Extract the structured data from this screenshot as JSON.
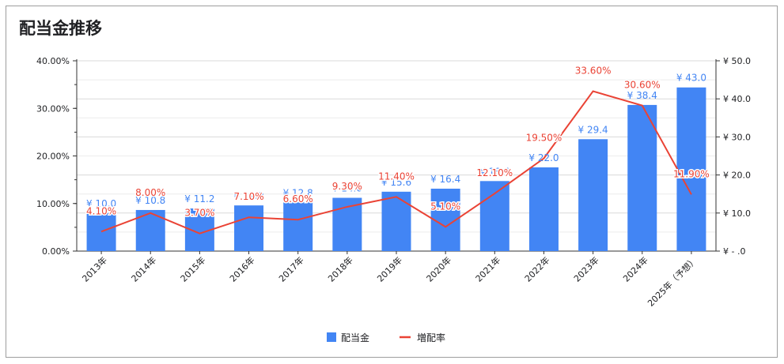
{
  "chart_data": {
    "type": "bar",
    "title": "配当金推移",
    "categories": [
      "2013年",
      "2014年",
      "2015年",
      "2016年",
      "2017年",
      "2018年",
      "2019年",
      "2020年",
      "2021年",
      "2022年",
      "2023年",
      "2024年",
      "2025年（予想）"
    ],
    "series": [
      {
        "name": "配当金",
        "type": "bar",
        "axis": "right",
        "color": "#4285f4",
        "values": [
          10.0,
          10.8,
          11.2,
          12.0,
          12.8,
          14.0,
          15.6,
          16.4,
          18.4,
          22.0,
          29.4,
          38.4,
          43.0
        ],
        "labels": [
          "¥ 10.0",
          "¥ 10.8",
          "¥ 11.2",
          "¥ 12.0",
          "¥ 12.8",
          "¥ 14.0",
          "¥ 15.6",
          "¥ 16.4",
          "¥ 18.4",
          "¥ 22.0",
          "¥ 29.4",
          "¥ 38.4",
          "¥ 43.0"
        ]
      },
      {
        "name": "増配率",
        "type": "line",
        "axis": "left",
        "color": "#ea4335",
        "values": [
          4.1,
          8.0,
          3.7,
          7.1,
          6.6,
          9.3,
          11.4,
          5.1,
          12.1,
          19.5,
          33.6,
          30.6,
          11.9
        ],
        "labels": [
          "4.10%",
          "8.00%",
          "3.70%",
          "7.10%",
          "6.60%",
          "9.30%",
          "11.40%",
          "5.10%",
          "12.10%",
          "19.50%",
          "33.60%",
          "30.60%",
          "11.90%"
        ]
      }
    ],
    "left_axis": {
      "ylim": [
        0,
        40
      ],
      "ticks": [
        "0.00%",
        "10.00%",
        "20.00%",
        "30.00%",
        "40.00%"
      ]
    },
    "right_axis": {
      "ylim": [
        0,
        50
      ],
      "ticks": [
        "¥ - .0",
        "¥ 10.0",
        "¥ 20.0",
        "¥ 30.0",
        "¥ 40.0",
        "¥ 50.0"
      ]
    },
    "grid": true,
    "legend": "bottom"
  }
}
